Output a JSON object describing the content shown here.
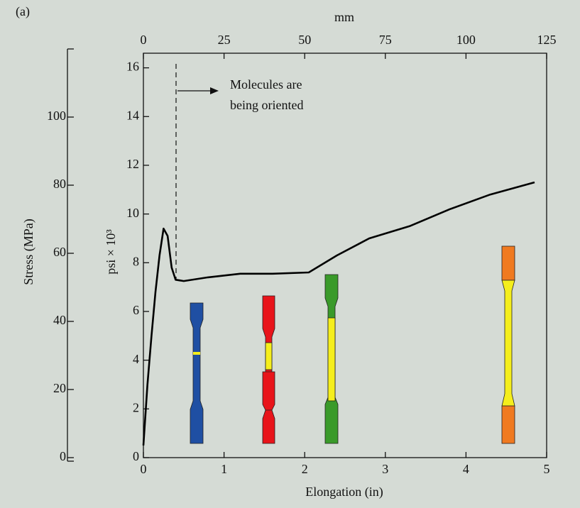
{
  "chart_data": {
    "type": "line",
    "panel_label": "(a)",
    "x_label": "Elongation (in)",
    "x2_label": "mm",
    "y_label": "psi × 10³",
    "y2_label": "Stress (MPa)",
    "annotation": [
      "Molecules are",
      "being oriented"
    ],
    "x": [
      0,
      0.05,
      0.1,
      0.15,
      0.2,
      0.25,
      0.3,
      0.35,
      0.4,
      0.5,
      0.8,
      1.2,
      1.6,
      2.05,
      2.4,
      2.8,
      3.3,
      3.8,
      4.3,
      4.85
    ],
    "values": [
      0.5,
      3,
      5,
      6.8,
      8.3,
      9.4,
      9.1,
      7.8,
      7.3,
      7.25,
      7.4,
      7.55,
      7.55,
      7.6,
      8.3,
      9,
      9.5,
      10.2,
      10.8,
      11.3
    ],
    "color": "#000000",
    "xlim": [
      0,
      5
    ],
    "xticks": [
      0,
      1,
      2,
      3,
      4,
      5
    ],
    "x2lim": [
      0,
      125
    ],
    "x2ticks": [
      0,
      25,
      50,
      75,
      100,
      125
    ],
    "ylim": [
      0,
      16.6
    ],
    "yticks": [
      0,
      2,
      4,
      6,
      8,
      10,
      12,
      14,
      16
    ],
    "y2lim": [
      0,
      120
    ],
    "y2ticks": [
      0,
      20,
      40,
      60,
      80,
      100
    ]
  }
}
